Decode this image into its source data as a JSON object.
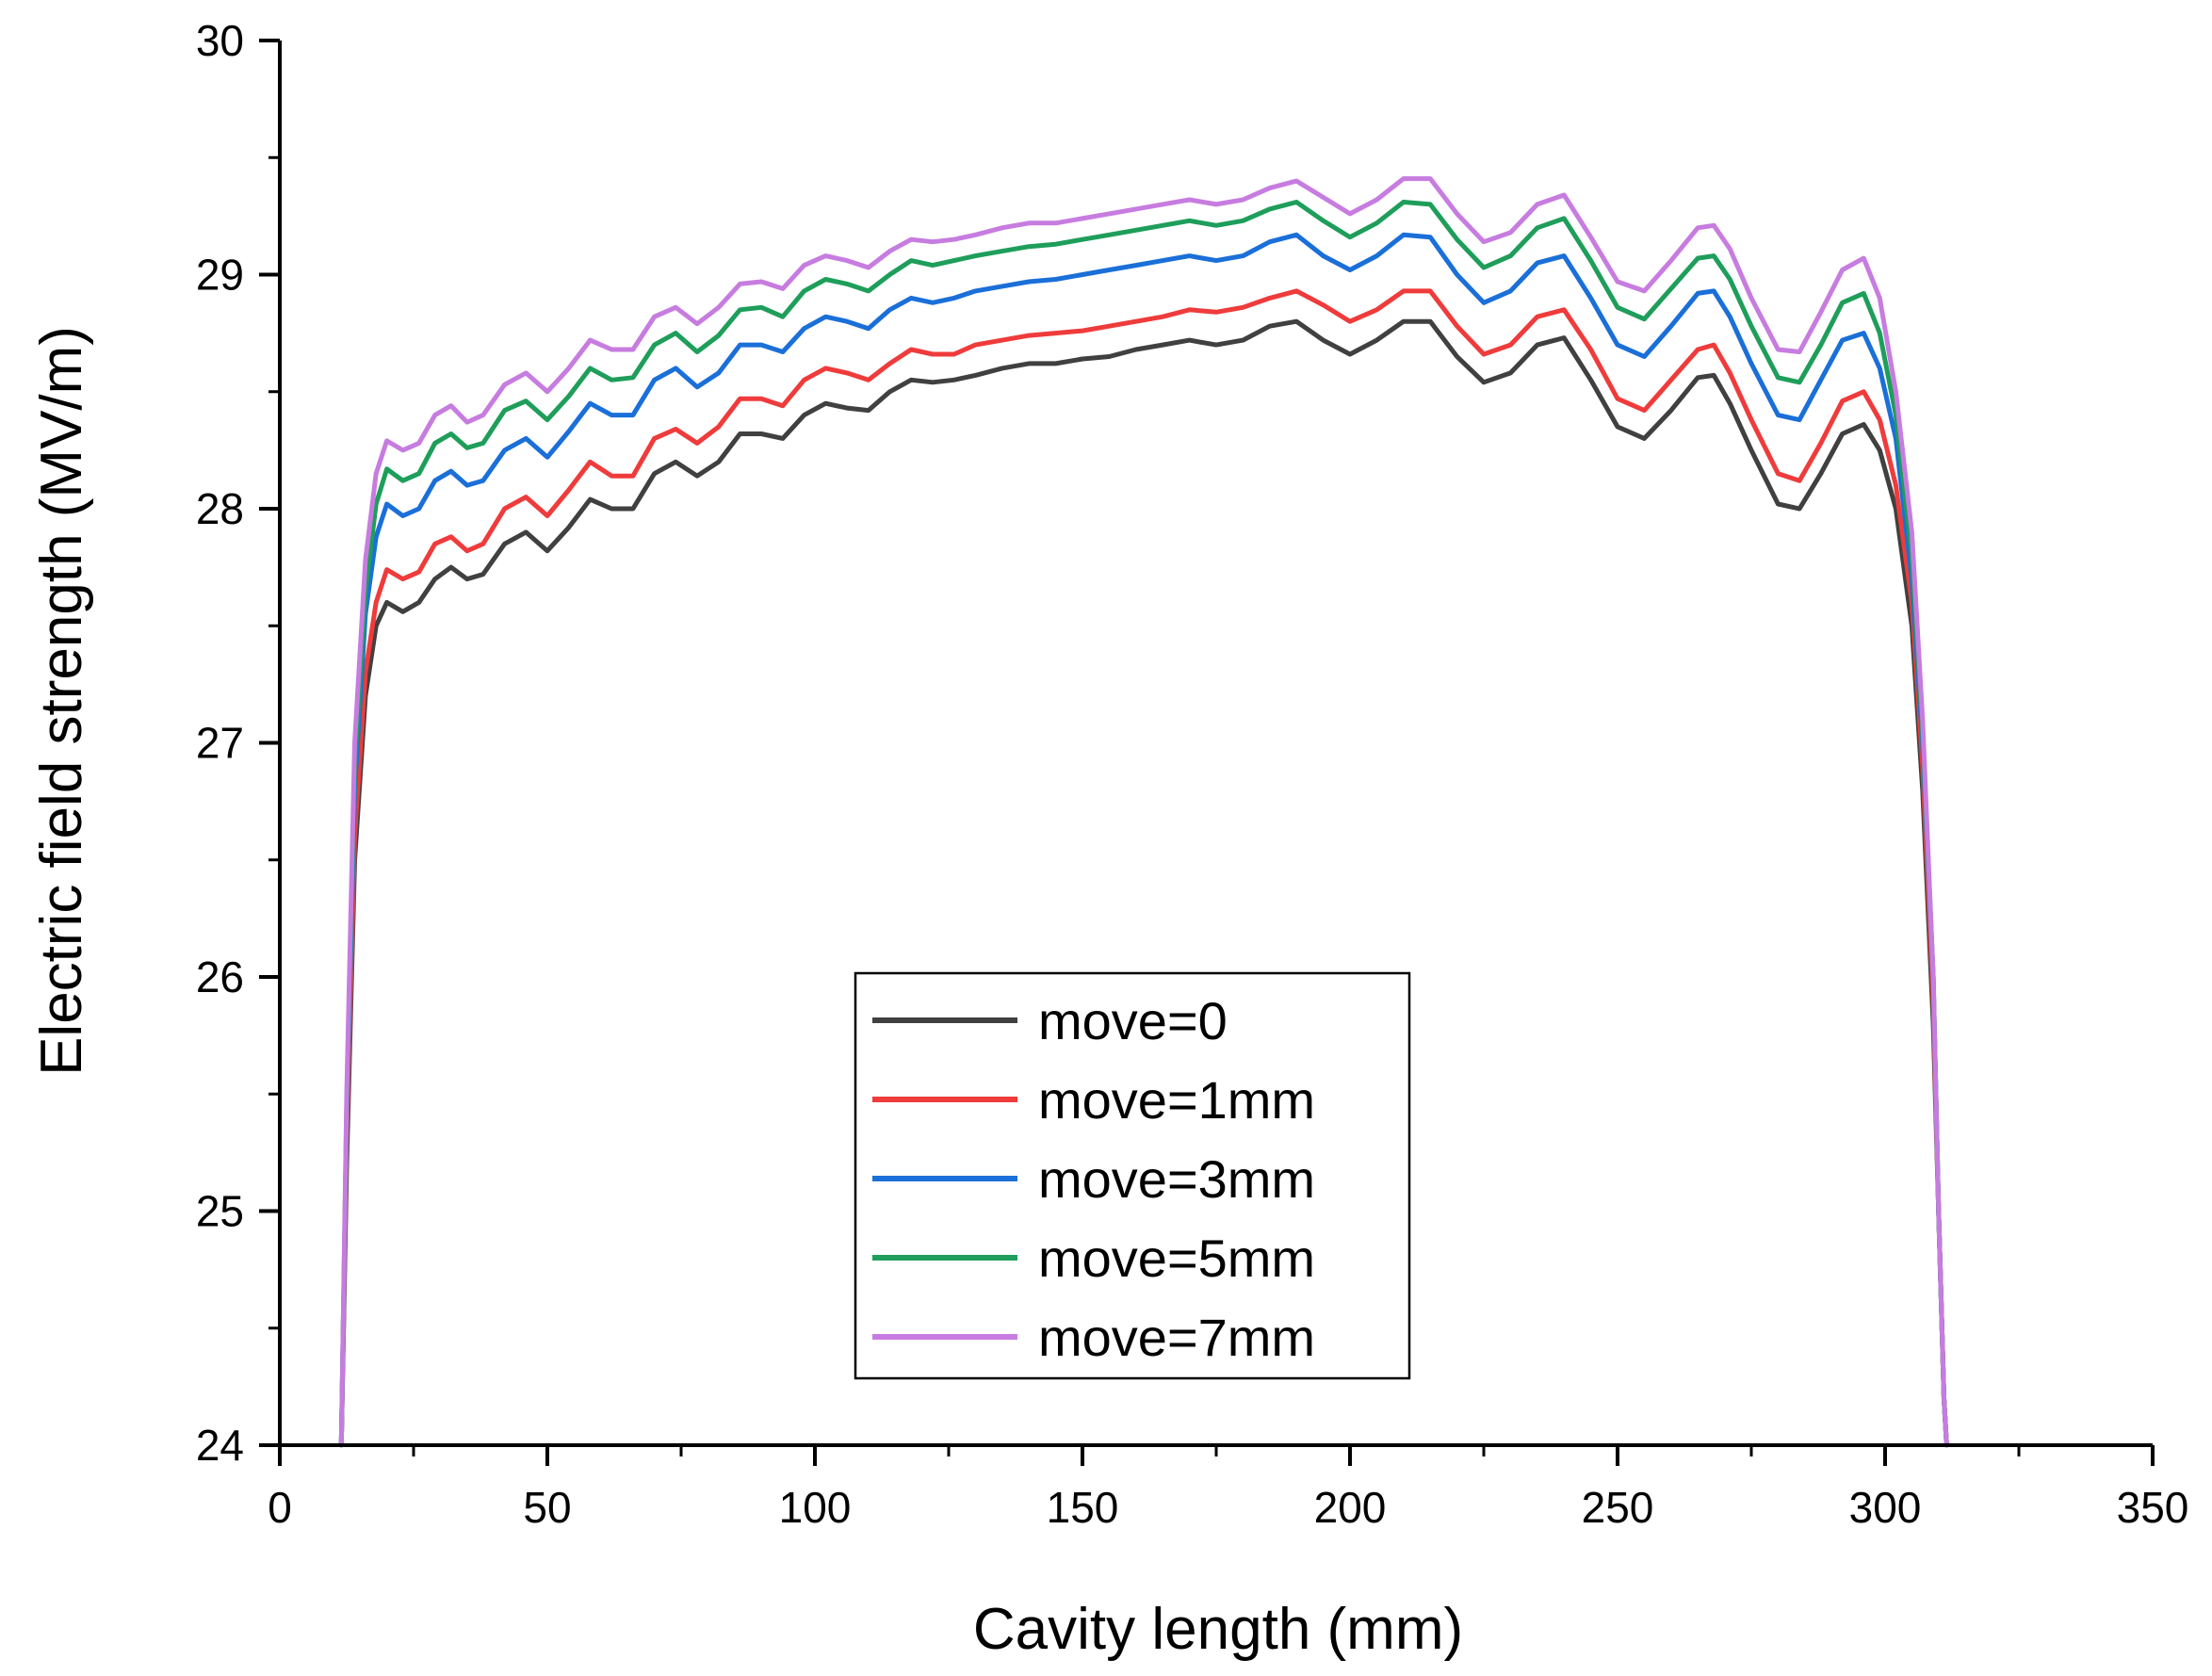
{
  "chart_data": {
    "type": "line",
    "title": "",
    "xlabel": "Cavity length (mm)",
    "ylabel": "Electric field strength (MV/m)",
    "xlim": [
      0,
      350
    ],
    "ylim": [
      24,
      30
    ],
    "xticks": [
      0,
      50,
      100,
      150,
      200,
      250,
      300,
      350
    ],
    "yticks": [
      24,
      25,
      26,
      27,
      28,
      29,
      30
    ],
    "grid": false,
    "legend_position": "bottom-center",
    "x": [
      11.5,
      12.5,
      14,
      16,
      18,
      20,
      23,
      26,
      29,
      32,
      35,
      38,
      42,
      46,
      50,
      54,
      58,
      62,
      66,
      70,
      74,
      78,
      82,
      86,
      90,
      94,
      98,
      102,
      106,
      110,
      114,
      118,
      122,
      126,
      130,
      135,
      140,
      145,
      150,
      155,
      160,
      165,
      170,
      175,
      180,
      185,
      190,
      195,
      200,
      205,
      210,
      215,
      220,
      225,
      230,
      235,
      240,
      245,
      250,
      255,
      260,
      265,
      268,
      271,
      275,
      280,
      284,
      288,
      292,
      296,
      299,
      302,
      305,
      307,
      309,
      310,
      311,
      311.5
    ],
    "series": [
      {
        "name": "move=0",
        "color": "#404040",
        "values": [
          24.0,
          25.2,
          26.5,
          27.2,
          27.5,
          27.6,
          27.56,
          27.6,
          27.7,
          27.75,
          27.7,
          27.72,
          27.85,
          27.9,
          27.82,
          27.92,
          28.04,
          28.0,
          28.0,
          28.15,
          28.2,
          28.14,
          28.2,
          28.32,
          28.32,
          28.3,
          28.4,
          28.45,
          28.43,
          28.42,
          28.5,
          28.55,
          28.54,
          28.55,
          28.57,
          28.6,
          28.62,
          28.62,
          28.64,
          28.65,
          28.68,
          28.7,
          28.72,
          28.7,
          28.72,
          28.78,
          28.8,
          28.72,
          28.66,
          28.72,
          28.8,
          28.8,
          28.65,
          28.54,
          28.58,
          28.7,
          28.73,
          28.55,
          28.35,
          28.3,
          28.42,
          28.56,
          28.57,
          28.45,
          28.25,
          28.02,
          28.0,
          28.15,
          28.32,
          28.36,
          28.25,
          28.0,
          27.5,
          26.8,
          25.8,
          25.0,
          24.2,
          24.0
        ]
      },
      {
        "name": "move=1mm",
        "color": "#ef3b3b",
        "values": [
          24.0,
          25.3,
          26.6,
          27.3,
          27.6,
          27.74,
          27.7,
          27.73,
          27.85,
          27.88,
          27.82,
          27.85,
          28.0,
          28.05,
          27.97,
          28.08,
          28.2,
          28.14,
          28.14,
          28.3,
          28.34,
          28.28,
          28.35,
          28.47,
          28.47,
          28.44,
          28.55,
          28.6,
          28.58,
          28.55,
          28.62,
          28.68,
          28.66,
          28.66,
          28.7,
          28.72,
          28.74,
          28.75,
          28.76,
          28.78,
          28.8,
          28.82,
          28.85,
          28.84,
          28.86,
          28.9,
          28.93,
          28.87,
          28.8,
          28.85,
          28.93,
          28.93,
          28.78,
          28.66,
          28.7,
          28.82,
          28.85,
          28.68,
          28.47,
          28.42,
          28.55,
          28.68,
          28.7,
          28.58,
          28.38,
          28.15,
          28.12,
          28.28,
          28.46,
          28.5,
          28.38,
          28.1,
          27.6,
          26.9,
          25.9,
          25.0,
          24.2,
          24.0
        ]
      },
      {
        "name": "move=3mm",
        "color": "#1a6fd8",
        "values": [
          24.0,
          25.4,
          26.8,
          27.55,
          27.88,
          28.02,
          27.97,
          28.0,
          28.12,
          28.16,
          28.1,
          28.12,
          28.25,
          28.3,
          28.22,
          28.33,
          28.45,
          28.4,
          28.4,
          28.55,
          28.6,
          28.52,
          28.58,
          28.7,
          28.7,
          28.67,
          28.77,
          28.82,
          28.8,
          28.77,
          28.85,
          28.9,
          28.88,
          28.9,
          28.93,
          28.95,
          28.97,
          28.98,
          29.0,
          29.02,
          29.04,
          29.06,
          29.08,
          29.06,
          29.08,
          29.14,
          29.17,
          29.08,
          29.02,
          29.08,
          29.17,
          29.16,
          29.0,
          28.88,
          28.93,
          29.05,
          29.08,
          28.9,
          28.7,
          28.65,
          28.78,
          28.92,
          28.93,
          28.82,
          28.62,
          28.4,
          28.38,
          28.55,
          28.72,
          28.75,
          28.6,
          28.3,
          27.7,
          27.0,
          26.0,
          25.0,
          24.2,
          24.0
        ]
      },
      {
        "name": "move=5mm",
        "color": "#1e9e5a",
        "values": [
          24.0,
          25.45,
          26.9,
          27.65,
          28.02,
          28.17,
          28.12,
          28.15,
          28.28,
          28.32,
          28.26,
          28.28,
          28.42,
          28.46,
          28.38,
          28.48,
          28.6,
          28.55,
          28.56,
          28.7,
          28.75,
          28.67,
          28.74,
          28.85,
          28.86,
          28.82,
          28.93,
          28.98,
          28.96,
          28.93,
          29.0,
          29.06,
          29.04,
          29.06,
          29.08,
          29.1,
          29.12,
          29.13,
          29.15,
          29.17,
          29.19,
          29.21,
          29.23,
          29.21,
          29.23,
          29.28,
          29.31,
          29.23,
          29.16,
          29.22,
          29.31,
          29.3,
          29.15,
          29.03,
          29.08,
          29.2,
          29.24,
          29.06,
          28.86,
          28.81,
          28.94,
          29.07,
          29.08,
          28.98,
          28.78,
          28.56,
          28.54,
          28.7,
          28.88,
          28.92,
          28.75,
          28.4,
          27.8,
          27.05,
          26.0,
          25.0,
          24.2,
          24.0
        ]
      },
      {
        "name": "move=7mm",
        "color": "#c77ce0",
        "values": [
          24.0,
          25.5,
          27.0,
          27.78,
          28.15,
          28.29,
          28.25,
          28.28,
          28.4,
          28.44,
          28.37,
          28.4,
          28.53,
          28.58,
          28.5,
          28.6,
          28.72,
          28.68,
          28.68,
          28.82,
          28.86,
          28.79,
          28.86,
          28.96,
          28.97,
          28.94,
          29.04,
          29.08,
          29.06,
          29.03,
          29.1,
          29.15,
          29.14,
          29.15,
          29.17,
          29.2,
          29.22,
          29.22,
          29.24,
          29.26,
          29.28,
          29.3,
          29.32,
          29.3,
          29.32,
          29.37,
          29.4,
          29.33,
          29.26,
          29.32,
          29.41,
          29.41,
          29.26,
          29.14,
          29.18,
          29.3,
          29.34,
          29.16,
          28.97,
          28.93,
          29.06,
          29.2,
          29.21,
          29.11,
          28.9,
          28.68,
          28.67,
          28.84,
          29.02,
          29.07,
          28.9,
          28.5,
          27.9,
          27.1,
          26.0,
          25.0,
          24.2,
          24.0
        ]
      }
    ]
  }
}
